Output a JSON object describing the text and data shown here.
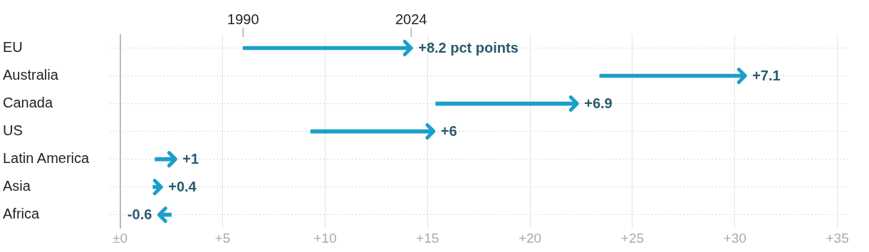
{
  "chart_data": {
    "type": "bar",
    "orientation": "horizontal",
    "categories": [
      "EU",
      "Australia",
      "Canada",
      "US",
      "Latin America",
      "Asia",
      "Africa"
    ],
    "base": [
      6.0,
      23.4,
      15.4,
      9.3,
      1.7,
      1.6,
      2.5
    ],
    "values": [
      8.2,
      7.1,
      6.9,
      6,
      1,
      0.4,
      -0.6
    ],
    "value_labels": [
      "+8.2 pct points",
      "+7.1",
      "+6.9",
      "+6",
      "+1",
      "+0.4",
      "-0.6"
    ],
    "color": "#1a9fc9",
    "xlim": [
      -0.5,
      35.5
    ],
    "xticks": [
      {
        "value": 0,
        "label": "±0"
      },
      {
        "value": 5,
        "label": "+5"
      },
      {
        "value": 10,
        "label": "+10"
      },
      {
        "value": 15,
        "label": "+15"
      },
      {
        "value": 20,
        "label": "+20"
      },
      {
        "value": 25,
        "label": "+25"
      },
      {
        "value": 30,
        "label": "+30"
      },
      {
        "value": 35,
        "label": "+35"
      }
    ],
    "grid": true,
    "annotations": [
      {
        "text": "1990",
        "x": 6.0,
        "y": "EU"
      },
      {
        "text": "2024",
        "x": 14.2,
        "y": "EU"
      }
    ]
  }
}
